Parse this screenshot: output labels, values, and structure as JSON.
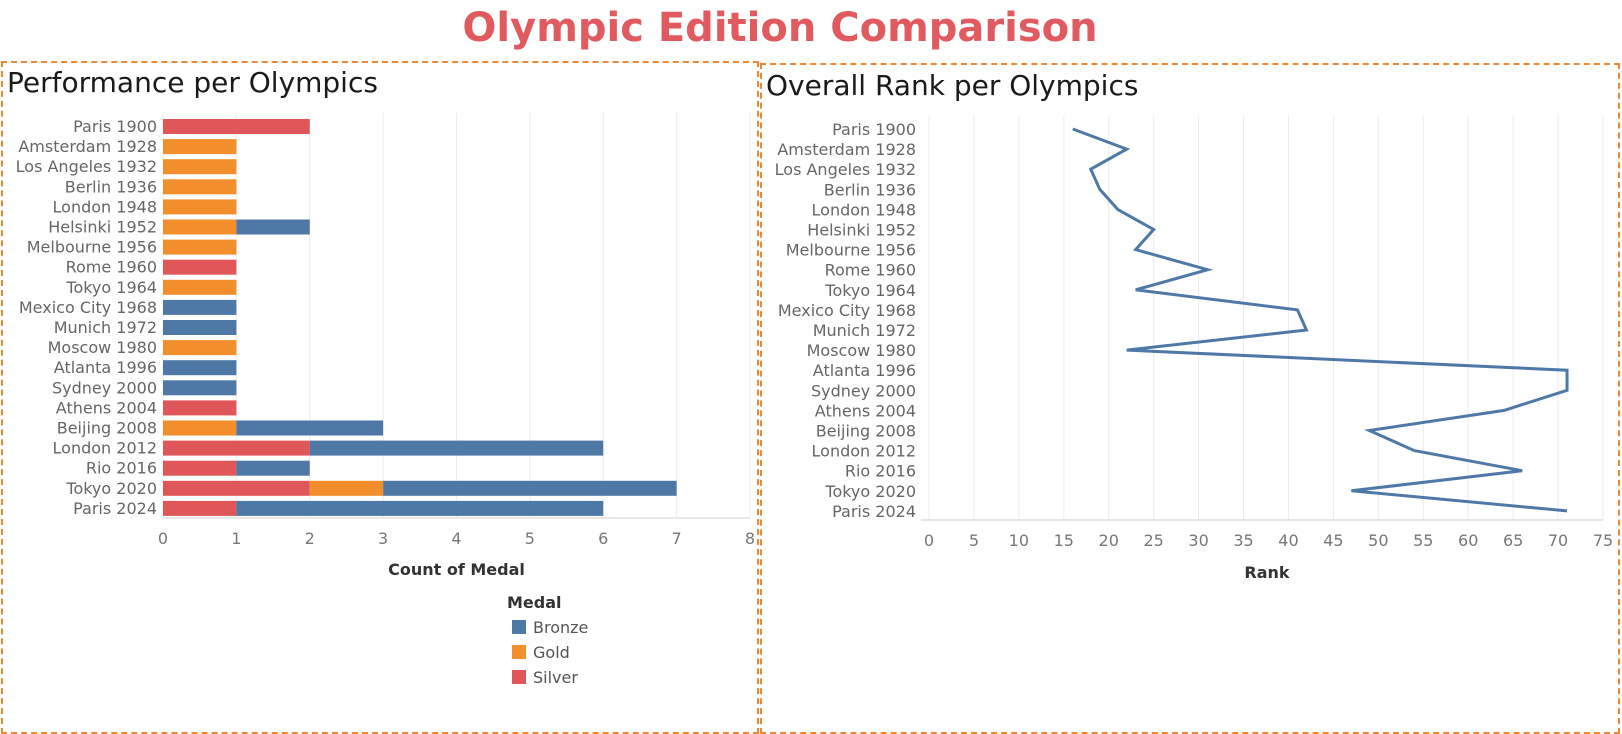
{
  "dashboard": {
    "title": "Olympic Edition Comparison",
    "title_color": "#e05a5f",
    "border_color": "#ee8833"
  },
  "legend": {
    "title": "Medal",
    "items": [
      {
        "label": "Bronze",
        "color": "#4e79a7"
      },
      {
        "label": "Gold",
        "color": "#f28e2b"
      },
      {
        "label": "Silver",
        "color": "#e15759"
      }
    ]
  },
  "chart_data": [
    {
      "type": "bar",
      "orientation": "horizontal",
      "stacked": true,
      "title": "Performance per Olympics",
      "xlabel": "Count of Medal",
      "ylabel": "",
      "xlim": [
        0,
        8
      ],
      "xticks": [
        0,
        1,
        2,
        3,
        4,
        5,
        6,
        7,
        8
      ],
      "grid": true,
      "legend_position": "bottom",
      "categories": [
        "Paris 1900",
        "Amsterdam 1928",
        "Los Angeles 1932",
        "Berlin 1936",
        "London 1948",
        "Helsinki 1952",
        "Melbourne 1956",
        "Rome 1960",
        "Tokyo 1964",
        "Mexico City 1968",
        "Munich 1972",
        "Moscow 1980",
        "Atlanta 1996",
        "Sydney 2000",
        "Athens 2004",
        "Beijing 2008",
        "London 2012",
        "Rio 2016",
        "Tokyo 2020",
        "Paris 2024"
      ],
      "series": [
        {
          "name": "Silver",
          "color": "#e15759",
          "values": [
            2,
            0,
            0,
            0,
            0,
            0,
            0,
            1,
            0,
            0,
            0,
            0,
            0,
            0,
            1,
            0,
            2,
            1,
            2,
            1
          ]
        },
        {
          "name": "Gold",
          "color": "#f28e2b",
          "values": [
            0,
            1,
            1,
            1,
            1,
            1,
            1,
            0,
            1,
            0,
            0,
            1,
            0,
            0,
            0,
            1,
            0,
            0,
            1,
            0
          ]
        },
        {
          "name": "Bronze",
          "color": "#4e79a7",
          "values": [
            0,
            0,
            0,
            0,
            0,
            1,
            0,
            0,
            0,
            1,
            1,
            0,
            1,
            1,
            0,
            2,
            4,
            1,
            4,
            5
          ]
        }
      ]
    },
    {
      "type": "line",
      "orientation": "vertical",
      "title": "Overall Rank per Olympics",
      "xlabel": "Rank",
      "ylabel": "",
      "xlim": [
        0,
        75
      ],
      "xticks": [
        0,
        5,
        10,
        15,
        20,
        25,
        30,
        35,
        40,
        45,
        50,
        55,
        60,
        65,
        70,
        75
      ],
      "grid": true,
      "line_color": "#4e79a7",
      "categories": [
        "Paris 1900",
        "Amsterdam 1928",
        "Los Angeles 1932",
        "Berlin 1936",
        "London 1948",
        "Helsinki 1952",
        "Melbourne 1956",
        "Rome 1960",
        "Tokyo 1964",
        "Mexico City 1968",
        "Munich 1972",
        "Moscow 1980",
        "Atlanta 1996",
        "Sydney 2000",
        "Athens 2004",
        "Beijing 2008",
        "London 2012",
        "Rio 2016",
        "Tokyo 2020",
        "Paris 2024"
      ],
      "values": [
        16,
        22,
        18,
        19,
        21,
        25,
        23,
        31,
        23,
        41,
        42,
        22,
        71,
        71,
        64,
        49,
        54,
        66,
        47,
        71
      ]
    }
  ]
}
